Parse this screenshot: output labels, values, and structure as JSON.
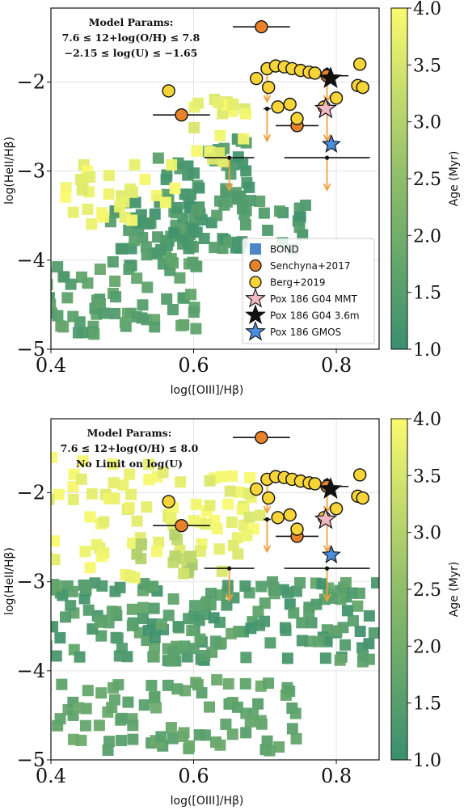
{
  "chart_data": [
    {
      "type": "scatter",
      "xlabel": "log([OIII]/Hβ)",
      "ylabel": "log(HeII/Hβ)",
      "xlim": [
        0.4,
        0.86
      ],
      "ylim": [
        -5,
        -1.17
      ],
      "x_ticks": [
        0.4,
        0.6,
        0.8
      ],
      "x_tick_labels": [
        "0.4",
        "0.6",
        "0.8"
      ],
      "y_ticks": [
        -2,
        -3,
        -4,
        -5
      ],
      "y_tick_labels": [
        "−2",
        "−3",
        "−4",
        "−5"
      ],
      "grid": true,
      "legend_position": "lower-right",
      "annotation": [
        "Model Params:",
        "7.6 ≤ 12+log(O/H) ≤ 7.8",
        "−2.15 ≤ log(U) ≤ −1.65"
      ],
      "colorbar": {
        "label": "Age (Myr)",
        "min": 1.0,
        "max": 4.0,
        "ticks": [
          "1.0",
          "1.5",
          "2.0",
          "2.5",
          "3.0",
          "3.5",
          "4.0"
        ],
        "low_color": "#3a8f6e",
        "high_color": "#fafa6e"
      },
      "legend": [
        {
          "label": "BOND",
          "marker": "square",
          "color": "#4d86c8"
        },
        {
          "label": "Senchyna+2017",
          "marker": "circle",
          "color": "#e8822a"
        },
        {
          "label": "Berg+2019",
          "marker": "circle",
          "color": "#f7d437"
        },
        {
          "label": "Pox 186 G04 MMT",
          "marker": "star",
          "color": "#f2b8c3"
        },
        {
          "label": "Pox 186 G04 3.6m",
          "marker": "star",
          "color": "#111111"
        },
        {
          "label": "Pox 186 GMOS",
          "marker": "star",
          "color": "#4a8ee0"
        }
      ],
      "bond_clusters": [
        {
          "x": [
            0.38,
            0.52
          ],
          "y": [
            -4.9,
            -4.0
          ],
          "age": [
            1.3,
            1.8
          ],
          "n": 45
        },
        {
          "x": [
            0.52,
            0.61
          ],
          "y": [
            -4.8,
            -3.6
          ],
          "age": [
            1.3,
            1.8
          ],
          "n": 40
        },
        {
          "x": [
            0.48,
            0.76
          ],
          "y": [
            -3.9,
            -3.3
          ],
          "age": [
            1.1,
            1.6
          ],
          "n": 80
        },
        {
          "x": [
            0.55,
            0.68
          ],
          "y": [
            -3.5,
            -2.6
          ],
          "age": [
            1.1,
            1.6
          ],
          "n": 40
        },
        {
          "x": [
            0.42,
            0.58
          ],
          "y": [
            -3.6,
            -2.9
          ],
          "age": [
            3.6,
            4.0
          ],
          "n": 30
        },
        {
          "x": [
            0.6,
            0.68
          ],
          "y": [
            -2.9,
            -2.1
          ],
          "age": [
            3.5,
            4.0
          ],
          "n": 20
        }
      ],
      "senchyna2017": [
        {
          "x": 0.695,
          "y": -1.38,
          "xerr": 0.04
        },
        {
          "x": 0.583,
          "y": -2.37,
          "xerr": 0.04
        },
        {
          "x": 0.745,
          "y": -2.49,
          "xerr": 0.03
        },
        {
          "x": 0.787,
          "y": -1.93,
          "xerr": 0.03
        }
      ],
      "berg2019": [
        {
          "x": 0.565,
          "y": -2.1
        },
        {
          "x": 0.688,
          "y": -1.96
        },
        {
          "x": 0.703,
          "y": -1.85
        },
        {
          "x": 0.715,
          "y": -1.82
        },
        {
          "x": 0.727,
          "y": -1.83
        },
        {
          "x": 0.738,
          "y": -1.85
        },
        {
          "x": 0.75,
          "y": -1.87
        },
        {
          "x": 0.762,
          "y": -1.89
        },
        {
          "x": 0.77,
          "y": -1.9
        },
        {
          "x": 0.705,
          "y": -2.06
        },
        {
          "x": 0.718,
          "y": -2.28
        },
        {
          "x": 0.735,
          "y": -2.25
        },
        {
          "x": 0.745,
          "y": -2.41
        },
        {
          "x": 0.8,
          "y": -2.18
        },
        {
          "x": 0.83,
          "y": -2.04
        },
        {
          "x": 0.837,
          "y": -2.06
        },
        {
          "x": 0.833,
          "y": -1.8
        },
        {
          "x": 0.783,
          "y": -2.28
        }
      ],
      "upper_limits": [
        {
          "x": 0.65,
          "y": -2.85,
          "xerr": 0.035
        },
        {
          "x": 0.787,
          "y": -2.85,
          "xerr": 0.06
        },
        {
          "x": 0.703,
          "y": -2.3,
          "xerr": 0.005
        },
        {
          "x": 0.787,
          "y": -2.3,
          "xerr": 0.005
        },
        {
          "x": 0.703,
          "y": -1.86,
          "xerr": 0.005
        },
        {
          "x": 0.787,
          "y": -1.86,
          "xerr": 0.005
        }
      ],
      "pox186": {
        "g04_mmt": {
          "x": 0.785,
          "y": -2.3
        },
        "g04_36m": {
          "x": 0.792,
          "y": -1.96
        },
        "gmos": {
          "x": 0.793,
          "y": -2.7
        }
      }
    },
    {
      "type": "scatter",
      "xlabel": "log([OIII]/Hβ)",
      "ylabel": "log(HeII/Hβ)",
      "xlim": [
        0.4,
        0.86
      ],
      "ylim": [
        -5,
        -1.17
      ],
      "x_ticks": [
        0.4,
        0.6,
        0.8
      ],
      "x_tick_labels": [
        "0.4",
        "0.6",
        "0.8"
      ],
      "y_ticks": [
        -2,
        -3,
        -4,
        -5
      ],
      "y_tick_labels": [
        "−2",
        "−3",
        "−4",
        "−5"
      ],
      "grid": true,
      "annotation": [
        "Model Params:",
        "7.6 ≤ 12+log(O/H) ≤ 8.0",
        "No Limit on log(U)"
      ],
      "colorbar": {
        "label": "Age (Myr)",
        "min": 1.0,
        "max": 4.0,
        "ticks": [
          "1.0",
          "1.5",
          "2.0",
          "2.5",
          "3.0",
          "3.5",
          "4.0"
        ],
        "low_color": "#3a8f6e",
        "high_color": "#fafa6e"
      },
      "bond_clusters": [
        {
          "x": [
            0.38,
            0.86
          ],
          "y": [
            -3.9,
            -3.0
          ],
          "age": [
            1.1,
            1.8
          ],
          "n": 180
        },
        {
          "x": [
            0.38,
            0.75
          ],
          "y": [
            -4.9,
            -4.1
          ],
          "age": [
            1.5,
            1.9
          ],
          "n": 90
        },
        {
          "x": [
            0.38,
            0.62
          ],
          "y": [
            -3.0,
            -1.6
          ],
          "age": [
            3.6,
            4.0
          ],
          "n": 60
        },
        {
          "x": [
            0.6,
            0.7
          ],
          "y": [
            -2.9,
            -1.8
          ],
          "age": [
            3.5,
            4.0
          ],
          "n": 30
        },
        {
          "x": [
            0.52,
            0.6
          ],
          "y": [
            -3.0,
            -2.4
          ],
          "age": [
            2.8,
            3.5
          ],
          "n": 15
        }
      ],
      "senchyna2017": [
        {
          "x": 0.695,
          "y": -1.38,
          "xerr": 0.04
        },
        {
          "x": 0.583,
          "y": -2.37,
          "xerr": 0.04
        },
        {
          "x": 0.745,
          "y": -2.49,
          "xerr": 0.03
        },
        {
          "x": 0.787,
          "y": -1.93,
          "xerr": 0.03
        }
      ],
      "berg2019": [
        {
          "x": 0.565,
          "y": -2.1
        },
        {
          "x": 0.688,
          "y": -1.96
        },
        {
          "x": 0.703,
          "y": -1.85
        },
        {
          "x": 0.715,
          "y": -1.82
        },
        {
          "x": 0.727,
          "y": -1.83
        },
        {
          "x": 0.738,
          "y": -1.85
        },
        {
          "x": 0.75,
          "y": -1.87
        },
        {
          "x": 0.762,
          "y": -1.89
        },
        {
          "x": 0.77,
          "y": -1.9
        },
        {
          "x": 0.705,
          "y": -2.06
        },
        {
          "x": 0.718,
          "y": -2.28
        },
        {
          "x": 0.735,
          "y": -2.25
        },
        {
          "x": 0.745,
          "y": -2.41
        },
        {
          "x": 0.8,
          "y": -2.18
        },
        {
          "x": 0.83,
          "y": -2.04
        },
        {
          "x": 0.837,
          "y": -2.06
        },
        {
          "x": 0.833,
          "y": -1.8
        },
        {
          "x": 0.783,
          "y": -2.28
        }
      ],
      "upper_limits": [
        {
          "x": 0.65,
          "y": -2.85,
          "xerr": 0.035
        },
        {
          "x": 0.787,
          "y": -2.85,
          "xerr": 0.06
        },
        {
          "x": 0.703,
          "y": -2.3,
          "xerr": 0.005
        },
        {
          "x": 0.787,
          "y": -2.3,
          "xerr": 0.005
        },
        {
          "x": 0.703,
          "y": -1.86,
          "xerr": 0.005
        },
        {
          "x": 0.787,
          "y": -1.86,
          "xerr": 0.005
        }
      ],
      "pox186": {
        "g04_mmt": {
          "x": 0.785,
          "y": -2.3
        },
        "g04_36m": {
          "x": 0.792,
          "y": -1.96
        },
        "gmos": {
          "x": 0.793,
          "y": -2.7
        }
      }
    }
  ]
}
